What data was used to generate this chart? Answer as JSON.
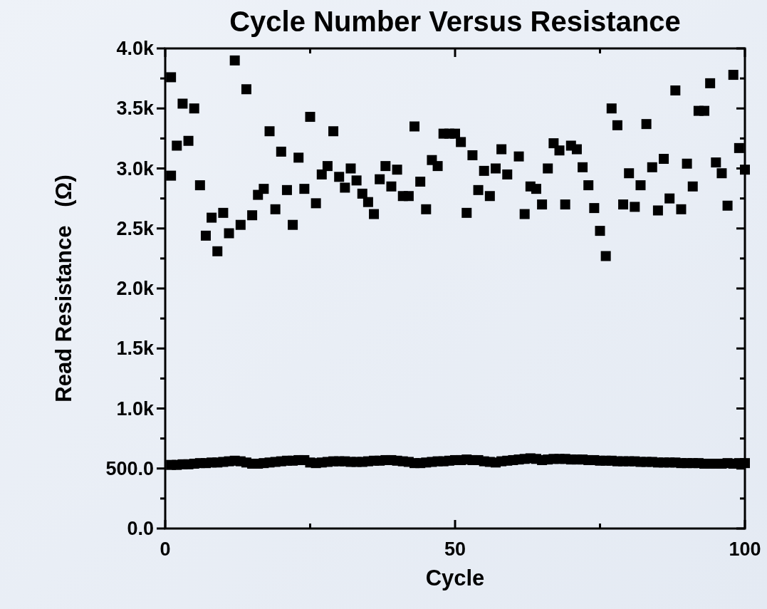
{
  "chart_data": {
    "type": "scatter",
    "title": "Cycle Number Versus Resistance",
    "xlabel": "Cycle",
    "ylabel": "Read Resistance   (Ω)",
    "xlim": [
      0,
      100
    ],
    "xticks": [
      0,
      {
        "value": 25,
        "label": null
      },
      50,
      {
        "value": 75,
        "label": null
      },
      100
    ],
    "ylim": [
      0,
      4000
    ],
    "yticks": [
      {
        "value": 0,
        "label": "0.0"
      },
      {
        "value": 250,
        "label": null
      },
      {
        "value": 500,
        "label": "500.0"
      },
      {
        "value": 750,
        "label": null
      },
      {
        "value": 1000,
        "label": "1.0k"
      },
      {
        "value": 1250,
        "label": null
      },
      {
        "value": 1500,
        "label": "1.5k"
      },
      {
        "value": 1750,
        "label": null
      },
      {
        "value": 2000,
        "label": "2.0k"
      },
      {
        "value": 2250,
        "label": null
      },
      {
        "value": 2500,
        "label": "2.5k"
      },
      {
        "value": 2750,
        "label": null
      },
      {
        "value": 3000,
        "label": "3.0k"
      },
      {
        "value": 3250,
        "label": null
      },
      {
        "value": 3500,
        "label": "3.5k"
      },
      {
        "value": 3750,
        "label": null
      },
      {
        "value": 4000,
        "label": "4.0k"
      }
    ],
    "marker": "square",
    "series": [
      {
        "color": "#000000",
        "x": [
          1,
          1,
          2,
          3,
          4,
          5,
          6,
          7,
          8,
          9,
          10,
          11,
          12,
          13,
          14,
          15,
          16,
          17,
          18,
          19,
          20,
          21,
          22,
          23,
          24,
          25,
          26,
          27,
          28,
          29,
          30,
          31,
          32,
          33,
          34,
          35,
          36,
          37,
          38,
          39,
          40,
          41,
          42,
          43,
          44,
          45,
          46,
          47,
          48,
          49,
          50,
          51,
          52,
          53,
          54,
          55,
          56,
          57,
          58,
          59,
          61,
          62,
          63,
          64,
          65,
          66,
          67,
          68,
          69,
          70,
          71,
          72,
          73,
          74,
          75,
          76,
          77,
          78,
          79,
          80,
          81,
          82,
          83,
          84,
          85,
          86,
          87,
          88,
          89,
          90,
          91,
          92,
          93,
          94,
          95,
          96,
          97,
          98,
          99,
          100
        ],
        "values": [
          3760,
          2940,
          3190,
          3540,
          3230,
          3500,
          2860,
          2440,
          2590,
          2310,
          2630,
          2460,
          3900,
          2530,
          3660,
          2610,
          2780,
          2830,
          3310,
          2660,
          3140,
          2820,
          2530,
          3090,
          2830,
          3430,
          2710,
          2950,
          3020,
          3310,
          2930,
          2840,
          3000,
          2900,
          2790,
          2720,
          2620,
          2910,
          3020,
          2850,
          2990,
          2770,
          2770,
          3350,
          2890,
          2660,
          3070,
          3020,
          3290,
          3290,
          3290,
          3220,
          2630,
          3110,
          2820,
          2980,
          2770,
          3000,
          3160,
          2950,
          3100,
          2620,
          2850,
          2830,
          2700,
          3000,
          3210,
          3150,
          2700,
          3190,
          3160,
          3010,
          2860,
          2670,
          2480,
          2270,
          3500,
          3360,
          2700,
          2960,
          2680,
          2860,
          3370,
          3010,
          2650,
          3080,
          2750,
          3650,
          2660,
          3040,
          2850,
          3480,
          3480,
          3710,
          3050,
          2960,
          2690,
          3780,
          3170,
          2990
        ]
      },
      {
        "color": "#000000",
        "x": [
          1,
          2,
          3,
          4,
          5,
          6,
          7,
          8,
          9,
          10,
          11,
          12,
          13,
          14,
          15,
          16,
          17,
          18,
          19,
          20,
          21,
          22,
          23,
          24,
          25,
          26,
          27,
          28,
          29,
          30,
          31,
          32,
          33,
          34,
          35,
          36,
          37,
          38,
          39,
          40,
          41,
          42,
          43,
          44,
          45,
          46,
          47,
          48,
          49,
          50,
          51,
          52,
          53,
          54,
          55,
          56,
          57,
          58,
          59,
          60,
          61,
          62,
          63,
          64,
          65,
          66,
          67,
          68,
          69,
          70,
          71,
          72,
          73,
          74,
          75,
          76,
          77,
          78,
          79,
          80,
          81,
          82,
          83,
          84,
          85,
          86,
          87,
          88,
          89,
          90,
          91,
          92,
          93,
          94,
          95,
          96,
          97,
          98,
          99,
          100
        ],
        "values": [
          530,
          530,
          535,
          535,
          540,
          545,
          545,
          550,
          550,
          555,
          560,
          565,
          560,
          550,
          540,
          540,
          545,
          550,
          555,
          560,
          565,
          565,
          570,
          570,
          550,
          545,
          550,
          555,
          560,
          560,
          560,
          555,
          555,
          555,
          560,
          565,
          565,
          570,
          570,
          565,
          560,
          555,
          545,
          545,
          550,
          555,
          560,
          560,
          565,
          570,
          570,
          575,
          570,
          570,
          560,
          555,
          550,
          560,
          565,
          570,
          575,
          580,
          585,
          580,
          570,
          575,
          580,
          580,
          580,
          575,
          575,
          575,
          570,
          570,
          565,
          565,
          565,
          560,
          560,
          560,
          560,
          555,
          555,
          555,
          550,
          550,
          550,
          550,
          545,
          545,
          545,
          545,
          540,
          540,
          540,
          540,
          545,
          540,
          545,
          545
        ]
      }
    ]
  }
}
